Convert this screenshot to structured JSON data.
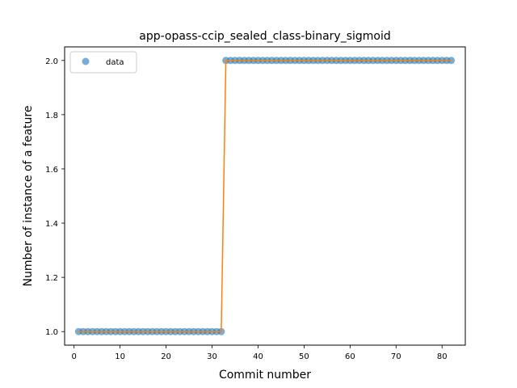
{
  "chart_data": {
    "type": "scatter",
    "title": "app-opass-ccip_sealed_class-binary_sigmoid",
    "xlabel": "Commit number",
    "ylabel": "Number of instance of a feature",
    "xlim": [
      -2.05,
      85.05
    ],
    "ylim": [
      0.95,
      2.05
    ],
    "xticks": [
      0,
      10,
      20,
      30,
      40,
      50,
      60,
      70,
      80
    ],
    "yticks": [
      1.0,
      1.2,
      1.4,
      1.6,
      1.8,
      2.0
    ],
    "ytick_labels": [
      "1.0",
      "1.2",
      "1.4",
      "1.6",
      "1.8",
      "2.0"
    ],
    "grid": false,
    "legend_position": "top-left",
    "series": [
      {
        "name": "data",
        "kind": "points",
        "color": "#1f77b4",
        "segments": [
          {
            "x_start": 1,
            "x_end": 32,
            "y": 1
          },
          {
            "x_start": 33,
            "x_end": 82,
            "y": 2
          }
        ]
      },
      {
        "kind": "line",
        "color": "#ff7f0e",
        "points": [
          [
            1,
            1
          ],
          [
            32,
            1
          ],
          [
            33,
            2
          ],
          [
            82,
            2
          ]
        ]
      }
    ]
  }
}
